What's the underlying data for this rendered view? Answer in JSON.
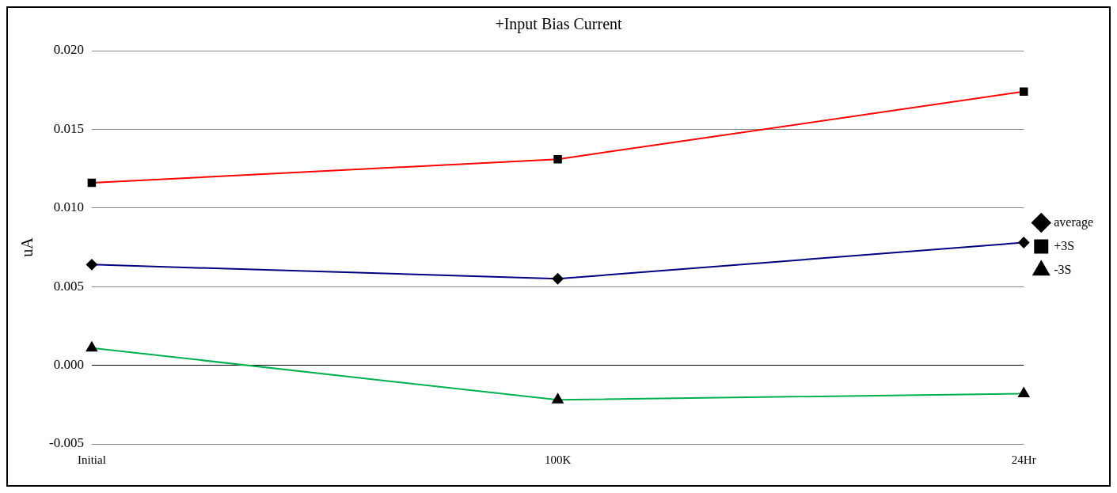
{
  "chart_data": {
    "type": "line",
    "title": "+Input Bias Current",
    "ylabel": "uA",
    "categories": [
      "Initial",
      "100K",
      "24Hr"
    ],
    "series": [
      {
        "name": "average",
        "color": "#000080",
        "marker": "diamond",
        "values": [
          0.0064,
          0.0055,
          0.0078
        ]
      },
      {
        "name": "+3S",
        "color": "#ff0000",
        "marker": "square",
        "values": [
          0.0116,
          0.0131,
          0.0174
        ]
      },
      {
        "name": "-3S",
        "color": "#00b050",
        "marker": "triangle",
        "values": [
          0.0011,
          -0.0022,
          -0.0018
        ]
      }
    ],
    "ylim": [
      -0.005,
      0.02
    ],
    "yticks": [
      {
        "value": -0.005,
        "label": "-0.005"
      },
      {
        "value": 0,
        "label": "0.000"
      },
      {
        "value": 0.005,
        "label": "0.005"
      },
      {
        "value": 0.01,
        "label": "0.010"
      },
      {
        "value": 0.015,
        "label": "0.015"
      },
      {
        "value": 0.02,
        "label": "0.020"
      }
    ],
    "grid": "y",
    "legend": "right",
    "line_style": "solid"
  }
}
